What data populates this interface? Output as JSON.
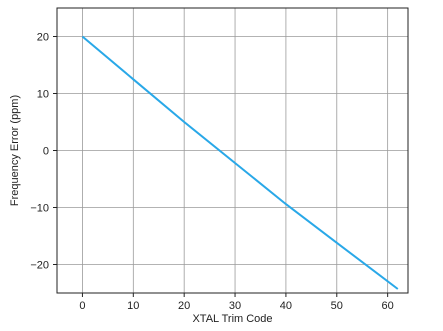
{
  "chart_data": {
    "type": "line",
    "xlabel": "XTAL Trim Code",
    "ylabel": "Frequency Error (ppm)",
    "xlim": [
      -5,
      64
    ],
    "ylim": [
      -25,
      25
    ],
    "xticks": [
      0,
      10,
      20,
      30,
      40,
      50,
      60
    ],
    "yticks": [
      20,
      10,
      0,
      -10,
      -20
    ],
    "xtick_labels": [
      "0",
      "10",
      "20",
      "30",
      "40",
      "50",
      "60"
    ],
    "ytick_labels": [
      "20",
      "10",
      "0",
      "−10",
      "−20"
    ],
    "grid": true,
    "series": [
      {
        "color": "#29a8e8",
        "x": [
          0,
          10,
          20,
          30,
          40,
          50,
          62
        ],
        "y": [
          20,
          12.5,
          5,
          -2.2,
          -9.4,
          -16.2,
          -24.3
        ]
      }
    ]
  }
}
